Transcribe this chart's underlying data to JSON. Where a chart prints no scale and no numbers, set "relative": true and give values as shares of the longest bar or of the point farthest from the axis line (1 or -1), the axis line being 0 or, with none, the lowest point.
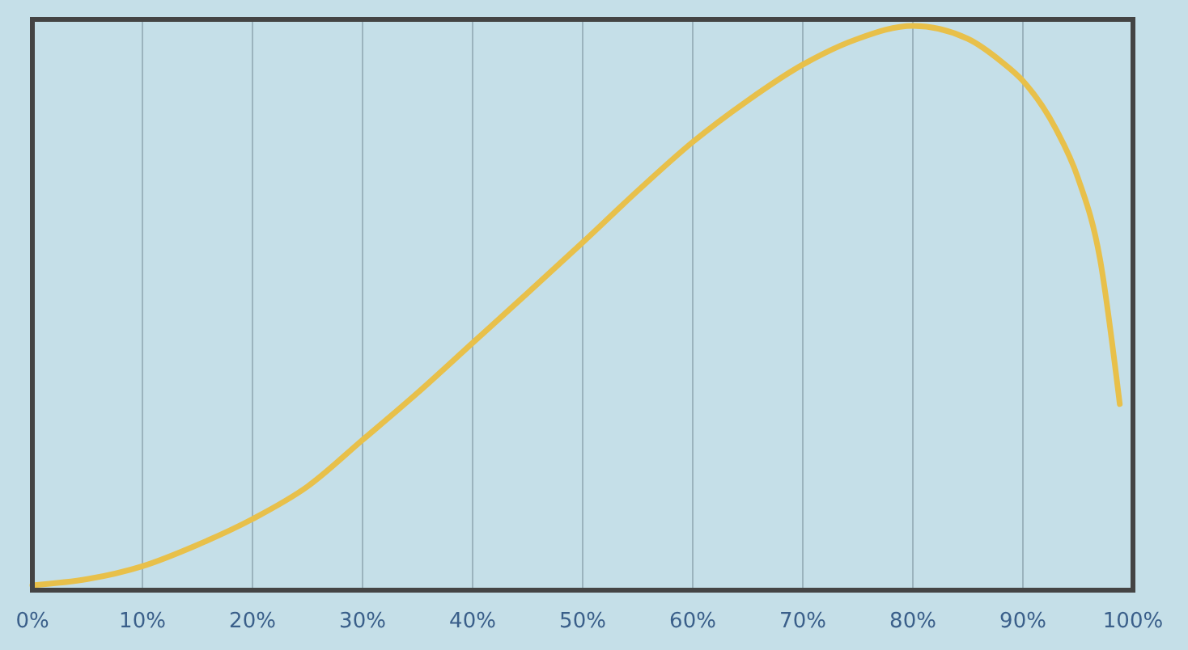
{
  "chart_data": {
    "type": "line",
    "relative": true,
    "grid": "x",
    "marker": "none",
    "line_style": "solid",
    "xlim": [
      0,
      100
    ],
    "xticks": [
      {
        "value": 0,
        "label": "0%"
      },
      {
        "value": 10,
        "label": "10%"
      },
      {
        "value": 20,
        "label": "20%"
      },
      {
        "value": 30,
        "label": "30%"
      },
      {
        "value": 40,
        "label": "40%"
      },
      {
        "value": 50,
        "label": "50%"
      },
      {
        "value": 60,
        "label": "60%"
      },
      {
        "value": 70,
        "label": "70%"
      },
      {
        "value": 80,
        "label": "80%"
      },
      {
        "value": 90,
        "label": "90%"
      },
      {
        "value": 100,
        "label": "100%"
      }
    ],
    "x": [
      0,
      5,
      10,
      15,
      20,
      25,
      30,
      35,
      40,
      45,
      50,
      55,
      60,
      65,
      70,
      75,
      80,
      85,
      88,
      90,
      93,
      95,
      97,
      98.8
    ],
    "series": [
      {
        "color": "#e8c04a",
        "values": [
          0.003,
          0.014,
          0.037,
          0.075,
          0.121,
          0.179,
          0.262,
          0.346,
          0.435,
          0.524,
          0.614,
          0.706,
          0.793,
          0.867,
          0.931,
          0.977,
          1.0,
          0.977,
          0.937,
          0.902,
          0.816,
          0.729,
          0.585,
          0.326
        ]
      }
    ]
  }
}
